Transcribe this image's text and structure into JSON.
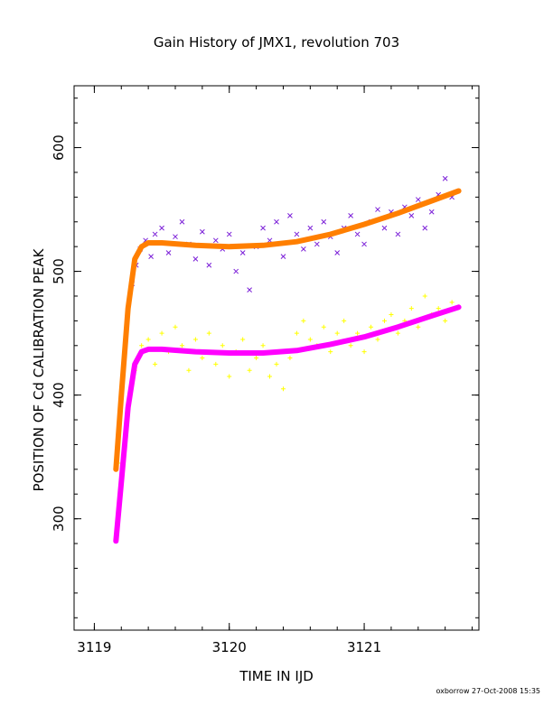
{
  "chart_data": {
    "type": "scatter",
    "title": "Gain History of JMX1, revolution 703",
    "xlabel": "TIME IN IJD",
    "ylabel": "POSITION OF Cd CALIBRATION PEAK",
    "xlim": [
      3118.85,
      3121.85
    ],
    "ylim": [
      210,
      650
    ],
    "xticks": [
      3119,
      3120,
      3121
    ],
    "xtick_labels": [
      "3119",
      "3120",
      "3121"
    ],
    "yticks": [
      300,
      400,
      500,
      600
    ],
    "ytick_labels": [
      "300",
      "400",
      "500",
      "600"
    ],
    "grid": false,
    "credit": "oxborrow 27-Oct-2008 15:35",
    "series": [
      {
        "marker": "x",
        "color": "#7b1fd8",
        "points": [
          [
            3119.25,
            470
          ],
          [
            3119.28,
            490
          ],
          [
            3119.31,
            505
          ],
          [
            3119.34,
            518
          ],
          [
            3119.38,
            525
          ],
          [
            3119.42,
            512
          ],
          [
            3119.45,
            530
          ],
          [
            3119.5,
            535
          ],
          [
            3119.55,
            515
          ],
          [
            3119.6,
            528
          ],
          [
            3119.65,
            540
          ],
          [
            3119.7,
            522
          ],
          [
            3119.75,
            510
          ],
          [
            3119.8,
            532
          ],
          [
            3119.85,
            505
          ],
          [
            3119.9,
            525
          ],
          [
            3119.95,
            518
          ],
          [
            3120.0,
            530
          ],
          [
            3120.05,
            500
          ],
          [
            3120.1,
            515
          ],
          [
            3120.15,
            485
          ],
          [
            3120.2,
            520
          ],
          [
            3120.25,
            535
          ],
          [
            3120.3,
            525
          ],
          [
            3120.35,
            540
          ],
          [
            3120.4,
            512
          ],
          [
            3120.45,
            545
          ],
          [
            3120.5,
            530
          ],
          [
            3120.55,
            518
          ],
          [
            3120.6,
            535
          ],
          [
            3120.65,
            522
          ],
          [
            3120.7,
            540
          ],
          [
            3120.75,
            528
          ],
          [
            3120.8,
            515
          ],
          [
            3120.85,
            535
          ],
          [
            3120.9,
            545
          ],
          [
            3120.95,
            530
          ],
          [
            3121.0,
            522
          ],
          [
            3121.05,
            540
          ],
          [
            3121.1,
            550
          ],
          [
            3121.15,
            535
          ],
          [
            3121.2,
            548
          ],
          [
            3121.25,
            530
          ],
          [
            3121.3,
            552
          ],
          [
            3121.35,
            545
          ],
          [
            3121.4,
            558
          ],
          [
            3121.45,
            535
          ],
          [
            3121.5,
            548
          ],
          [
            3121.55,
            562
          ],
          [
            3121.6,
            575
          ],
          [
            3121.65,
            560
          ]
        ]
      },
      {
        "marker": "+",
        "color": "#ffff00",
        "points": [
          [
            3119.2,
            345
          ],
          [
            3119.25,
            390
          ],
          [
            3119.3,
            420
          ],
          [
            3119.35,
            440
          ],
          [
            3119.4,
            445
          ],
          [
            3119.45,
            425
          ],
          [
            3119.5,
            450
          ],
          [
            3119.55,
            435
          ],
          [
            3119.6,
            455
          ],
          [
            3119.65,
            440
          ],
          [
            3119.7,
            420
          ],
          [
            3119.75,
            445
          ],
          [
            3119.8,
            430
          ],
          [
            3119.85,
            450
          ],
          [
            3119.9,
            425
          ],
          [
            3119.95,
            440
          ],
          [
            3120.0,
            415
          ],
          [
            3120.05,
            435
          ],
          [
            3120.1,
            445
          ],
          [
            3120.15,
            420
          ],
          [
            3120.2,
            430
          ],
          [
            3120.25,
            440
          ],
          [
            3120.3,
            415
          ],
          [
            3120.35,
            425
          ],
          [
            3120.4,
            405
          ],
          [
            3120.45,
            430
          ],
          [
            3120.5,
            450
          ],
          [
            3120.55,
            460
          ],
          [
            3120.6,
            445
          ],
          [
            3120.65,
            440
          ],
          [
            3120.7,
            455
          ],
          [
            3120.75,
            435
          ],
          [
            3120.8,
            450
          ],
          [
            3120.85,
            460
          ],
          [
            3120.9,
            440
          ],
          [
            3120.95,
            450
          ],
          [
            3121.0,
            435
          ],
          [
            3121.05,
            455
          ],
          [
            3121.1,
            445
          ],
          [
            3121.15,
            460
          ],
          [
            3121.2,
            465
          ],
          [
            3121.25,
            450
          ],
          [
            3121.3,
            460
          ],
          [
            3121.35,
            470
          ],
          [
            3121.4,
            455
          ],
          [
            3121.45,
            480
          ],
          [
            3121.5,
            465
          ],
          [
            3121.55,
            470
          ],
          [
            3121.6,
            460
          ],
          [
            3121.65,
            475
          ]
        ]
      },
      {
        "marker": "curve",
        "color": "#ff7f00",
        "points": [
          [
            3119.16,
            340
          ],
          [
            3119.2,
            400
          ],
          [
            3119.25,
            470
          ],
          [
            3119.3,
            510
          ],
          [
            3119.35,
            520
          ],
          [
            3119.4,
            523
          ],
          [
            3119.5,
            523
          ],
          [
            3119.75,
            521
          ],
          [
            3120.0,
            520
          ],
          [
            3120.25,
            521
          ],
          [
            3120.5,
            524
          ],
          [
            3120.75,
            530
          ],
          [
            3121.0,
            538
          ],
          [
            3121.25,
            547
          ],
          [
            3121.5,
            557
          ],
          [
            3121.7,
            565
          ]
        ]
      },
      {
        "marker": "curve",
        "color": "#ff00ff",
        "points": [
          [
            3119.16,
            282
          ],
          [
            3119.2,
            330
          ],
          [
            3119.25,
            390
          ],
          [
            3119.3,
            425
          ],
          [
            3119.35,
            435
          ],
          [
            3119.4,
            437
          ],
          [
            3119.5,
            437
          ],
          [
            3119.75,
            435
          ],
          [
            3120.0,
            434
          ],
          [
            3120.25,
            434
          ],
          [
            3120.5,
            436
          ],
          [
            3120.75,
            441
          ],
          [
            3121.0,
            447
          ],
          [
            3121.25,
            455
          ],
          [
            3121.5,
            464
          ],
          [
            3121.7,
            471
          ]
        ]
      }
    ]
  }
}
